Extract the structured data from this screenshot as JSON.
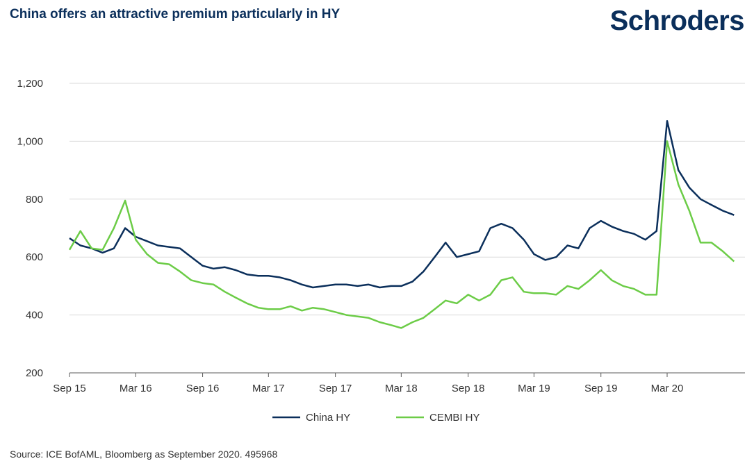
{
  "header": {
    "title": "China offers an attractive premium particularly in HY",
    "logo": "Schroders"
  },
  "footer": {
    "source": "Source: ICE BofAML, Bloomberg as September 2020. 495968"
  },
  "chart_data": {
    "type": "line",
    "title": "China offers an attractive premium particularly in HY",
    "xlabel": "",
    "ylabel": "",
    "ylim": [
      200,
      1200
    ],
    "yticks": [
      200,
      400,
      600,
      800,
      1000,
      1200
    ],
    "ytick_labels": [
      "200",
      "400",
      "600",
      "800",
      "1,000",
      "1,200"
    ],
    "xlim": [
      "2015-09-01",
      "2020-10-01"
    ],
    "xticks": [
      "2015-09-01",
      "2016-03-01",
      "2016-09-01",
      "2017-03-01",
      "2017-09-01",
      "2018-03-01",
      "2018-09-01",
      "2019-03-01",
      "2019-09-01",
      "2020-03-01"
    ],
    "xtick_labels": [
      "Sep 15",
      "Mar 16",
      "Sep 16",
      "Mar 17",
      "Sep 17",
      "Mar 18",
      "Sep 18",
      "Mar 19",
      "Sep 19",
      "Mar 20"
    ],
    "grid": "horizontal",
    "legend": "bottom-center",
    "series": [
      {
        "name": "China HY",
        "color": "#0b2f5b",
        "points": [
          [
            "2015-09-01",
            665
          ],
          [
            "2015-10-01",
            640
          ],
          [
            "2015-11-01",
            630
          ],
          [
            "2015-12-01",
            615
          ],
          [
            "2016-01-01",
            630
          ],
          [
            "2016-02-01",
            700
          ],
          [
            "2016-03-01",
            670
          ],
          [
            "2016-04-01",
            655
          ],
          [
            "2016-05-01",
            640
          ],
          [
            "2016-06-01",
            635
          ],
          [
            "2016-07-01",
            630
          ],
          [
            "2016-08-01",
            600
          ],
          [
            "2016-09-01",
            570
          ],
          [
            "2016-10-01",
            560
          ],
          [
            "2016-11-01",
            565
          ],
          [
            "2016-12-01",
            555
          ],
          [
            "2017-01-01",
            540
          ],
          [
            "2017-02-01",
            535
          ],
          [
            "2017-03-01",
            535
          ],
          [
            "2017-04-01",
            530
          ],
          [
            "2017-05-01",
            520
          ],
          [
            "2017-06-01",
            505
          ],
          [
            "2017-07-01",
            495
          ],
          [
            "2017-08-01",
            500
          ],
          [
            "2017-09-01",
            505
          ],
          [
            "2017-10-01",
            505
          ],
          [
            "2017-11-01",
            500
          ],
          [
            "2017-12-01",
            505
          ],
          [
            "2018-01-01",
            495
          ],
          [
            "2018-02-01",
            500
          ],
          [
            "2018-03-01",
            500
          ],
          [
            "2018-04-01",
            515
          ],
          [
            "2018-05-01",
            550
          ],
          [
            "2018-06-01",
            600
          ],
          [
            "2018-07-01",
            650
          ],
          [
            "2018-08-01",
            600
          ],
          [
            "2018-09-01",
            610
          ],
          [
            "2018-10-01",
            620
          ],
          [
            "2018-11-01",
            700
          ],
          [
            "2018-12-01",
            715
          ],
          [
            "2019-01-01",
            700
          ],
          [
            "2019-02-01",
            660
          ],
          [
            "2019-03-01",
            610
          ],
          [
            "2019-04-01",
            590
          ],
          [
            "2019-05-01",
            600
          ],
          [
            "2019-06-01",
            640
          ],
          [
            "2019-07-01",
            630
          ],
          [
            "2019-08-01",
            700
          ],
          [
            "2019-09-01",
            725
          ],
          [
            "2019-10-01",
            705
          ],
          [
            "2019-11-01",
            690
          ],
          [
            "2019-12-01",
            680
          ],
          [
            "2020-01-01",
            660
          ],
          [
            "2020-02-01",
            690
          ],
          [
            "2020-03-01",
            1070
          ],
          [
            "2020-04-01",
            900
          ],
          [
            "2020-05-01",
            840
          ],
          [
            "2020-06-01",
            800
          ],
          [
            "2020-07-01",
            780
          ],
          [
            "2020-08-01",
            760
          ],
          [
            "2020-09-01",
            745
          ]
        ]
      },
      {
        "name": "CEMBI HY",
        "color": "#6ccc47",
        "points": [
          [
            "2015-09-01",
            625
          ],
          [
            "2015-10-01",
            690
          ],
          [
            "2015-11-01",
            630
          ],
          [
            "2015-12-01",
            625
          ],
          [
            "2016-01-01",
            700
          ],
          [
            "2016-02-01",
            795
          ],
          [
            "2016-03-01",
            660
          ],
          [
            "2016-04-01",
            610
          ],
          [
            "2016-05-01",
            580
          ],
          [
            "2016-06-01",
            575
          ],
          [
            "2016-07-01",
            550
          ],
          [
            "2016-08-01",
            520
          ],
          [
            "2016-09-01",
            510
          ],
          [
            "2016-10-01",
            505
          ],
          [
            "2016-11-01",
            480
          ],
          [
            "2016-12-01",
            460
          ],
          [
            "2017-01-01",
            440
          ],
          [
            "2017-02-01",
            425
          ],
          [
            "2017-03-01",
            420
          ],
          [
            "2017-04-01",
            420
          ],
          [
            "2017-05-01",
            430
          ],
          [
            "2017-06-01",
            415
          ],
          [
            "2017-07-01",
            425
          ],
          [
            "2017-08-01",
            420
          ],
          [
            "2017-09-01",
            410
          ],
          [
            "2017-10-01",
            400
          ],
          [
            "2017-11-01",
            395
          ],
          [
            "2017-12-01",
            390
          ],
          [
            "2018-01-01",
            375
          ],
          [
            "2018-02-01",
            365
          ],
          [
            "2018-03-01",
            355
          ],
          [
            "2018-04-01",
            375
          ],
          [
            "2018-05-01",
            390
          ],
          [
            "2018-06-01",
            420
          ],
          [
            "2018-07-01",
            450
          ],
          [
            "2018-08-01",
            440
          ],
          [
            "2018-09-01",
            470
          ],
          [
            "2018-10-01",
            450
          ],
          [
            "2018-11-01",
            470
          ],
          [
            "2018-12-01",
            520
          ],
          [
            "2019-01-01",
            530
          ],
          [
            "2019-02-01",
            480
          ],
          [
            "2019-03-01",
            475
          ],
          [
            "2019-04-01",
            475
          ],
          [
            "2019-05-01",
            470
          ],
          [
            "2019-06-01",
            500
          ],
          [
            "2019-07-01",
            490
          ],
          [
            "2019-08-01",
            520
          ],
          [
            "2019-09-01",
            555
          ],
          [
            "2019-10-01",
            520
          ],
          [
            "2019-11-01",
            500
          ],
          [
            "2019-12-01",
            490
          ],
          [
            "2020-01-01",
            470
          ],
          [
            "2020-02-01",
            470
          ],
          [
            "2020-03-01",
            1000
          ],
          [
            "2020-04-01",
            850
          ],
          [
            "2020-05-01",
            760
          ],
          [
            "2020-06-01",
            650
          ],
          [
            "2020-07-01",
            650
          ],
          [
            "2020-08-01",
            620
          ],
          [
            "2020-09-01",
            585
          ]
        ]
      }
    ]
  }
}
